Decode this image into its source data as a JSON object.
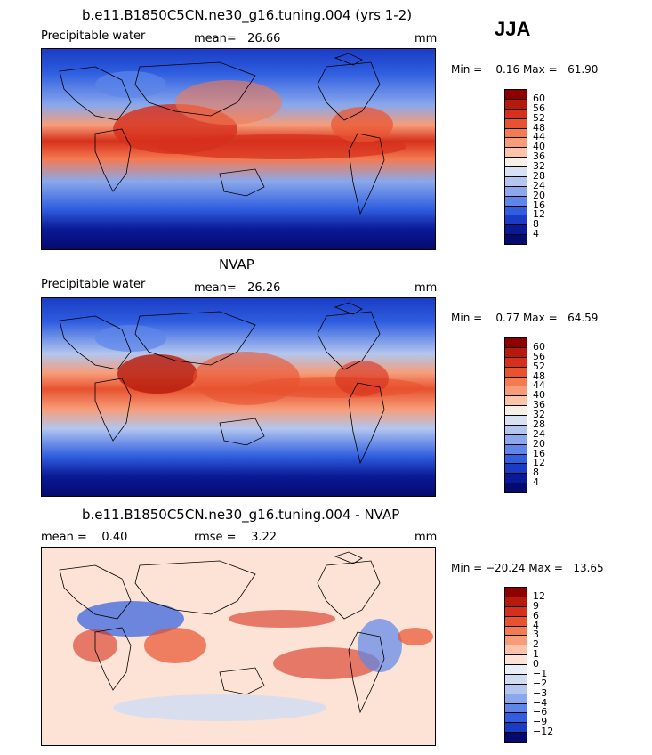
{
  "season": "JJA",
  "panels": [
    {
      "title": "b.e11.B1850C5CN.ne30_g16.tuning.004 (yrs 1-2)",
      "left_label": "Precipitable water",
      "mid_label": "mean=   26.66",
      "unit": "mm",
      "minmax": "Min =    0.16 Max =   61.90",
      "colorbar_ticks": [
        "60",
        "56",
        "52",
        "48",
        "44",
        "40",
        "36",
        "32",
        "28",
        "24",
        "20",
        "16",
        "12",
        "8",
        "4"
      ]
    },
    {
      "title": "NVAP",
      "left_label": "Precipitable water",
      "mid_label": "mean=   26.26",
      "unit": "mm",
      "minmax": "Min =    0.77 Max =   64.59",
      "colorbar_ticks": [
        "60",
        "56",
        "52",
        "48",
        "44",
        "40",
        "36",
        "32",
        "28",
        "24",
        "20",
        "16",
        "12",
        "8",
        "4"
      ]
    },
    {
      "title": "b.e11.B1850C5CN.ne30_g16.tuning.004 - NVAP",
      "left_label": "mean =    0.40",
      "mid_label": "rmse =    3.22",
      "unit": "mm",
      "minmax": "Min = −20.24 Max =   13.65",
      "colorbar_ticks": [
        "12",
        "9",
        "6",
        "4",
        "3",
        "2",
        "1",
        "0",
        "−1",
        "−2",
        "−3",
        "−4",
        "−6",
        "−9",
        "−12"
      ]
    }
  ],
  "colors": {
    "abs_scale": [
      "#8c0000",
      "#b51a0d",
      "#d6301c",
      "#e8522f",
      "#f47a52",
      "#f79c78",
      "#fbc4aa",
      "#f8efe9",
      "#d7e2f5",
      "#b2c6ef",
      "#8aa8eb",
      "#5c86ea",
      "#2f5ee0",
      "#1a3cc4",
      "#0a1a96",
      "#050a6e"
    ],
    "diff_scale": [
      "#8c0000",
      "#b51a0d",
      "#d6301c",
      "#e8522f",
      "#f47a52",
      "#f79c78",
      "#fbc4aa",
      "#fde3d6",
      "#e9eef9",
      "#d0dcf4",
      "#b2c6ef",
      "#8aa8eb",
      "#5c86ea",
      "#2f5ee0",
      "#1a3cc4",
      "#050a6e"
    ]
  },
  "chart_data": [
    {
      "type": "heatmap",
      "title": "b.e11.B1850C5CN.ne30_g16.tuning.004 (yrs 1-2)",
      "variable": "Precipitable water",
      "units": "mm",
      "mean": 26.66,
      "min": 0.16,
      "max": 61.9,
      "contour_levels": [
        4,
        8,
        12,
        16,
        20,
        24,
        28,
        32,
        36,
        40,
        44,
        48,
        52,
        56,
        60
      ],
      "projection": "cylindrical equidistant, global"
    },
    {
      "type": "heatmap",
      "title": "NVAP",
      "variable": "Precipitable water",
      "units": "mm",
      "mean": 26.26,
      "min": 0.77,
      "max": 64.59,
      "contour_levels": [
        4,
        8,
        12,
        16,
        20,
        24,
        28,
        32,
        36,
        40,
        44,
        48,
        52,
        56,
        60
      ],
      "projection": "cylindrical equidistant, global"
    },
    {
      "type": "heatmap",
      "title": "b.e11.B1850C5CN.ne30_g16.tuning.004 - NVAP",
      "variable": "difference",
      "units": "mm",
      "mean": 0.4,
      "rmse": 3.22,
      "min": -20.24,
      "max": 13.65,
      "contour_levels": [
        -12,
        -9,
        -6,
        -4,
        -3,
        -2,
        -1,
        0,
        1,
        2,
        3,
        4,
        6,
        9,
        12
      ],
      "projection": "cylindrical equidistant, global"
    }
  ]
}
